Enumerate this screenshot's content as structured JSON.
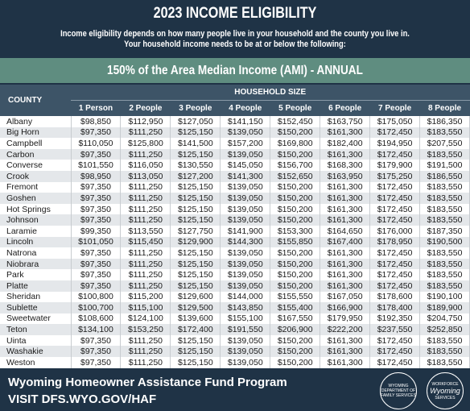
{
  "header": {
    "title": "2023 INCOME ELIGIBILITY",
    "intro": [
      "Income eligibility depends on how many people live in your household and the county you live in.",
      "Your household income needs to be at or below the following:"
    ],
    "band": "150% of the Area Median Income (AMI) - ANNUAL"
  },
  "table": {
    "county_header": "COUNTY",
    "group_header": "HOUSEHOLD SIZE",
    "columns": [
      "1 Person",
      "2 People",
      "3 People",
      "4 People",
      "5 People",
      "6 People",
      "7 People",
      "8 People"
    ],
    "rows": [
      {
        "county": "Albany",
        "values": [
          "$98,850",
          "$112,950",
          "$127,050",
          "$141,150",
          "$152,450",
          "$163,750",
          "$175,050",
          "$186,350"
        ]
      },
      {
        "county": "Big Horn",
        "values": [
          "$97,350",
          "$111,250",
          "$125,150",
          "$139,050",
          "$150,200",
          "$161,300",
          "$172,450",
          "$183,550"
        ]
      },
      {
        "county": "Campbell",
        "values": [
          "$110,050",
          "$125,800",
          "$141,500",
          "$157,200",
          "$169,800",
          "$182,400",
          "$194,950",
          "$207,550"
        ]
      },
      {
        "county": "Carbon",
        "values": [
          "$97,350",
          "$111,250",
          "$125,150",
          "$139,050",
          "$150,200",
          "$161,300",
          "$172,450",
          "$183,550"
        ]
      },
      {
        "county": "Converse",
        "values": [
          "$101,550",
          "$116,050",
          "$130,550",
          "$145,050",
          "$156,700",
          "$168,300",
          "$179,900",
          "$191,500"
        ]
      },
      {
        "county": "Crook",
        "values": [
          "$98,950",
          "$113,050",
          "$127,200",
          "$141,300",
          "$152,650",
          "$163,950",
          "$175,250",
          "$186,550"
        ]
      },
      {
        "county": "Fremont",
        "values": [
          "$97,350",
          "$111,250",
          "$125,150",
          "$139,050",
          "$150,200",
          "$161,300",
          "$172,450",
          "$183,550"
        ]
      },
      {
        "county": "Goshen",
        "values": [
          "$97,350",
          "$111,250",
          "$125,150",
          "$139,050",
          "$150,200",
          "$161,300",
          "$172,450",
          "$183,550"
        ]
      },
      {
        "county": "Hot Springs",
        "values": [
          "$97,350",
          "$111,250",
          "$125,150",
          "$139,050",
          "$150,200",
          "$161,300",
          "$172,450",
          "$183,550"
        ]
      },
      {
        "county": "Johnson",
        "values": [
          "$97,350",
          "$111,250",
          "$125,150",
          "$139,050",
          "$150,200",
          "$161,300",
          "$172,450",
          "$183,550"
        ]
      },
      {
        "county": "Laramie",
        "values": [
          "$99,350",
          "$113,550",
          "$127,750",
          "$141,900",
          "$153,300",
          "$164,650",
          "$176,000",
          "$187,350"
        ]
      },
      {
        "county": "Lincoln",
        "values": [
          "$101,050",
          "$115,450",
          "$129,900",
          "$144,300",
          "$155,850",
          "$167,400",
          "$178,950",
          "$190,500"
        ]
      },
      {
        "county": "Natrona",
        "values": [
          "$97,350",
          "$111,250",
          "$125,150",
          "$139,050",
          "$150,200",
          "$161,300",
          "$172,450",
          "$183,550"
        ]
      },
      {
        "county": "Niobrara",
        "values": [
          "$97,350",
          "$111,250",
          "$125,150",
          "$139,050",
          "$150,200",
          "$161,300",
          "$172,450",
          "$183,550"
        ]
      },
      {
        "county": "Park",
        "values": [
          "$97,350",
          "$111,250",
          "$125,150",
          "$139,050",
          "$150,200",
          "$161,300",
          "$172,450",
          "$183,550"
        ]
      },
      {
        "county": "Platte",
        "values": [
          "$97,350",
          "$111,250",
          "$125,150",
          "$139,050",
          "$150,200",
          "$161,300",
          "$172,450",
          "$183,550"
        ]
      },
      {
        "county": "Sheridan",
        "values": [
          "$100,800",
          "$115,200",
          "$129,600",
          "$144,000",
          "$155,550",
          "$167,050",
          "$178,600",
          "$190,100"
        ]
      },
      {
        "county": "Sublette",
        "values": [
          "$100,700",
          "$115,100",
          "$129,500",
          "$143,850",
          "$155,400",
          "$166,900",
          "$178,400",
          "$189,900"
        ]
      },
      {
        "county": "Sweetwater",
        "values": [
          "$108,600",
          "$124,100",
          "$139,600",
          "$155,100",
          "$167,550",
          "$179,950",
          "$192,350",
          "$204,750"
        ]
      },
      {
        "county": "Teton",
        "values": [
          "$134,100",
          "$153,250",
          "$172,400",
          "$191,550",
          "$206,900",
          "$222,200",
          "$237,550",
          "$252,850"
        ]
      },
      {
        "county": "Uinta",
        "values": [
          "$97,350",
          "$111,250",
          "$125,150",
          "$139,050",
          "$150,200",
          "$161,300",
          "$172,450",
          "$183,550"
        ]
      },
      {
        "county": "Washakie",
        "values": [
          "$97,350",
          "$111,250",
          "$125,150",
          "$139,050",
          "$150,200",
          "$161,300",
          "$172,450",
          "$183,550"
        ]
      },
      {
        "county": "Weston",
        "values": [
          "$97,350",
          "$111,250",
          "$125,150",
          "$139,050",
          "$150,200",
          "$161,300",
          "$172,450",
          "$183,550"
        ]
      }
    ]
  },
  "footer": {
    "program": "Wyoming Homeowner Assistance Fund Program",
    "visit": "VISIT DFS.WYO.GOV/HAF",
    "logo_left": "WYOMING DEPARTMENT OF FAMILY SERVICES",
    "logo_right_top": "WORKFORCE",
    "logo_right_mid": "Wyoming",
    "logo_right_bottom": "SERVICES"
  }
}
